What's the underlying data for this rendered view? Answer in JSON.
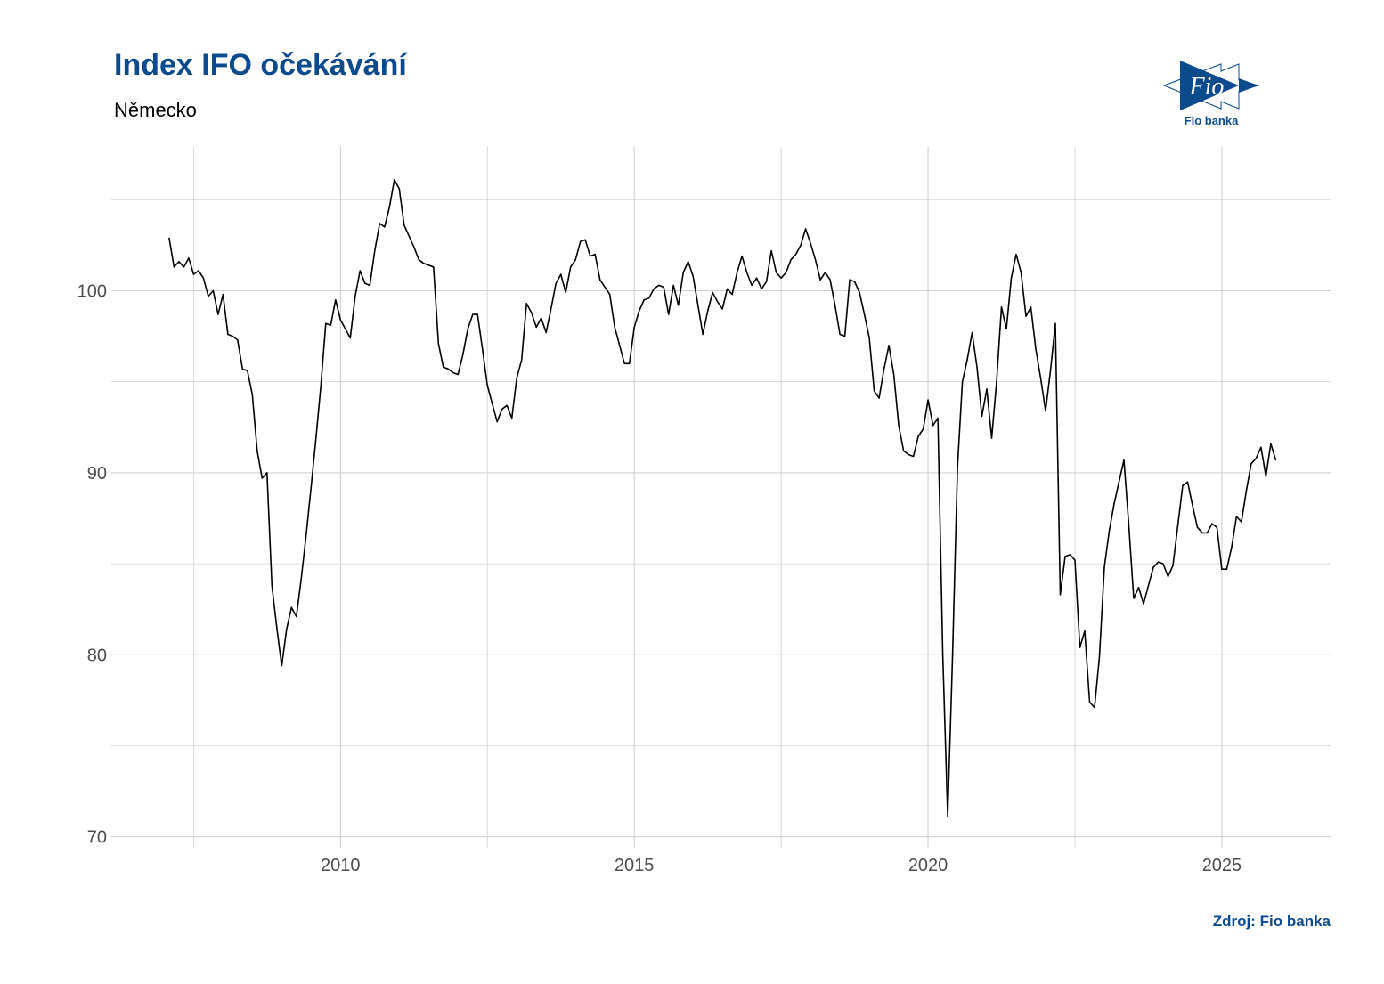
{
  "header": {
    "title": "Index IFO očekávání",
    "subtitle": "Německo"
  },
  "logo": {
    "text": "Fio",
    "caption": "Fio banka"
  },
  "footer": {
    "source": "Zdroj: Fio banka"
  },
  "colors": {
    "brand": "#0b4a8c",
    "line": "#000000",
    "grid": "#d0d0d0"
  },
  "chart_data": {
    "type": "line",
    "title": "Index IFO očekávání",
    "subtitle": "Německo",
    "xlabel": "",
    "ylabel": "",
    "frequency": "monthly",
    "xlim": [
      2006.1,
      2026.85
    ],
    "ylim": [
      69.4,
      107.9
    ],
    "x_ticks": [
      "2010",
      "2015",
      "2020",
      "2025"
    ],
    "y_ticks": [
      "70",
      "80",
      "90",
      "100"
    ],
    "grid": true,
    "legend": "none",
    "values_by_year": {
      "2007": [
        102.9,
        101.3,
        101.6,
        101.3,
        101.8,
        100.9,
        101.1,
        100.7,
        99.7,
        100.0,
        98.7,
        99.8
      ],
      "2008": [
        97.6,
        97.5,
        97.3,
        95.7,
        95.6,
        94.3,
        91.2,
        89.7,
        90.0,
        83.8,
        81.5,
        79.4
      ],
      "2009": [
        81.4,
        82.6,
        82.1,
        84.2,
        86.6,
        89.2,
        91.9,
        94.8,
        98.2,
        98.1,
        99.5,
        98.4
      ],
      "2010": [
        97.9,
        97.4,
        99.7,
        101.1,
        100.4,
        100.3,
        102.2,
        103.7,
        103.5,
        104.6,
        106.1,
        105.6
      ],
      "2011": [
        103.6,
        103.0,
        102.4,
        101.7,
        101.5,
        101.4,
        101.3,
        97.1,
        95.8,
        95.7,
        95.5,
        95.4
      ],
      "2012": [
        96.5,
        97.9,
        98.7,
        98.7,
        96.8,
        94.8,
        93.8,
        92.8,
        93.5,
        93.7,
        93.0,
        95.2
      ],
      "2013": [
        96.2,
        99.3,
        98.8,
        98.0,
        98.5,
        97.7,
        99.0,
        100.4,
        100.9,
        99.9,
        101.3,
        101.7
      ],
      "2014": [
        102.7,
        102.8,
        101.9,
        102.0,
        100.6,
        100.2,
        99.8,
        98.0,
        97.0,
        96.0,
        96.0,
        98.0
      ],
      "2015": [
        98.9,
        99.5,
        99.6,
        100.1,
        100.3,
        100.2,
        98.7,
        100.3,
        99.2,
        101.0,
        101.6,
        100.8
      ],
      "2016": [
        99.2,
        97.6,
        98.9,
        99.9,
        99.4,
        99.0,
        100.1,
        99.8,
        101.0,
        101.9,
        101.0,
        100.3
      ],
      "2017": [
        100.7,
        100.1,
        100.5,
        102.2,
        101.0,
        100.7,
        101.0,
        101.7,
        102.0,
        102.5,
        103.4,
        102.6
      ],
      "2018": [
        101.7,
        100.6,
        101.0,
        100.6,
        99.2,
        97.6,
        97.5,
        100.6,
        100.5,
        99.9,
        98.7,
        97.4
      ],
      "2019": [
        94.5,
        94.1,
        95.7,
        97.0,
        95.4,
        92.6,
        91.2,
        91.0,
        90.9,
        92.0,
        92.4,
        94.0
      ],
      "2020": [
        92.6,
        93.0,
        80.0,
        71.1,
        80.0,
        90.3,
        95.0,
        96.2,
        97.7,
        95.8,
        93.1,
        94.6
      ],
      "2021": [
        91.9,
        95.0,
        99.1,
        97.9,
        100.7,
        102.0,
        101.0,
        98.6,
        99.1,
        96.8,
        95.2,
        93.4
      ],
      "2022": [
        95.6,
        98.2,
        83.3,
        85.4,
        85.5,
        85.2,
        80.4,
        81.3,
        77.4,
        77.1,
        79.9,
        84.8
      ],
      "2023": [
        86.8,
        88.3,
        89.5,
        90.7,
        87.1,
        83.1,
        83.7,
        82.8,
        83.8,
        84.8,
        85.1,
        85.0
      ],
      "2024": [
        84.3,
        84.9,
        87.1,
        89.3,
        89.5,
        88.2,
        87.0,
        86.7,
        86.7,
        87.2,
        87.0,
        84.7
      ],
      "2025": [
        84.7,
        85.9,
        87.6,
        87.3,
        89.0,
        90.5,
        90.8,
        91.4,
        89.8,
        91.6,
        90.7
      ]
    }
  }
}
